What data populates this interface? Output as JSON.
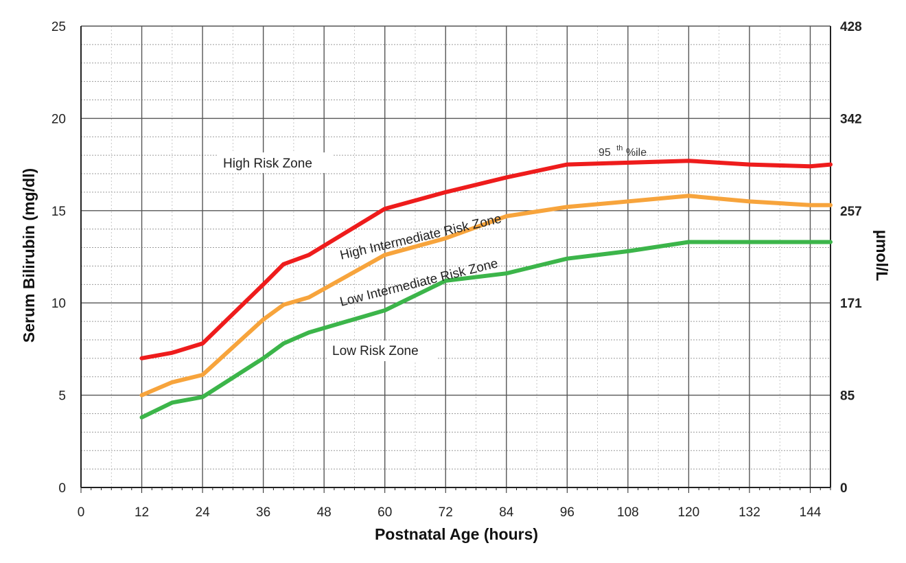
{
  "chart_data": {
    "type": "line",
    "xlabel": "Postnatal Age (hours)",
    "ylabel": "Serum Bilirubin (mg/dl)",
    "y2label": "µmol/L",
    "xlim": [
      0,
      148
    ],
    "ylim": [
      0,
      25
    ],
    "xticks": [
      0,
      12,
      24,
      36,
      48,
      60,
      72,
      84,
      96,
      108,
      120,
      132,
      144
    ],
    "yticks": [
      0,
      5,
      10,
      15,
      20,
      25
    ],
    "y2ticks": [
      {
        "at": 0,
        "label": "0"
      },
      {
        "at": 5,
        "label": "85"
      },
      {
        "at": 10,
        "label": "171"
      },
      {
        "at": 15,
        "label": "257"
      },
      {
        "at": 20,
        "label": "342"
      },
      {
        "at": 25,
        "label": "428"
      }
    ],
    "grid": true,
    "series": [
      {
        "name": "95th %ile",
        "color": "#ee1c1c",
        "x": [
          12,
          18,
          24,
          36,
          40,
          45,
          60,
          72,
          84,
          96,
          120,
          132,
          144,
          148
        ],
        "values": [
          7.0,
          7.3,
          7.8,
          11.0,
          12.1,
          12.6,
          15.1,
          16.0,
          16.8,
          17.5,
          17.7,
          17.5,
          17.4,
          17.5
        ]
      },
      {
        "name": "",
        "color": "#f7a43c",
        "x": [
          12,
          18,
          24,
          36,
          40,
          45,
          60,
          72,
          84,
          96,
          120,
          132,
          144,
          148
        ],
        "values": [
          5.0,
          5.7,
          6.1,
          9.1,
          9.9,
          10.3,
          12.6,
          13.5,
          14.7,
          15.2,
          15.8,
          15.5,
          15.3,
          15.3
        ]
      },
      {
        "name": "",
        "color": "#3cb54a",
        "x": [
          12,
          18,
          24,
          36,
          40,
          45,
          60,
          72,
          84,
          96,
          108,
          120,
          132,
          144,
          148
        ],
        "values": [
          3.8,
          4.6,
          4.9,
          7.0,
          7.8,
          8.4,
          9.6,
          11.2,
          11.6,
          12.4,
          12.8,
          13.3,
          13.3,
          13.3,
          13.3
        ]
      }
    ],
    "annotations": {
      "high_risk": "High Risk Zone",
      "high_intermediate": "High Intermediate Risk Zone",
      "low_intermediate": "Low Intermediate Risk Zone",
      "low_risk": "Low Risk Zone",
      "pct_number": "95",
      "pct_suffix": "th",
      "pct_tail": "%ile"
    }
  }
}
